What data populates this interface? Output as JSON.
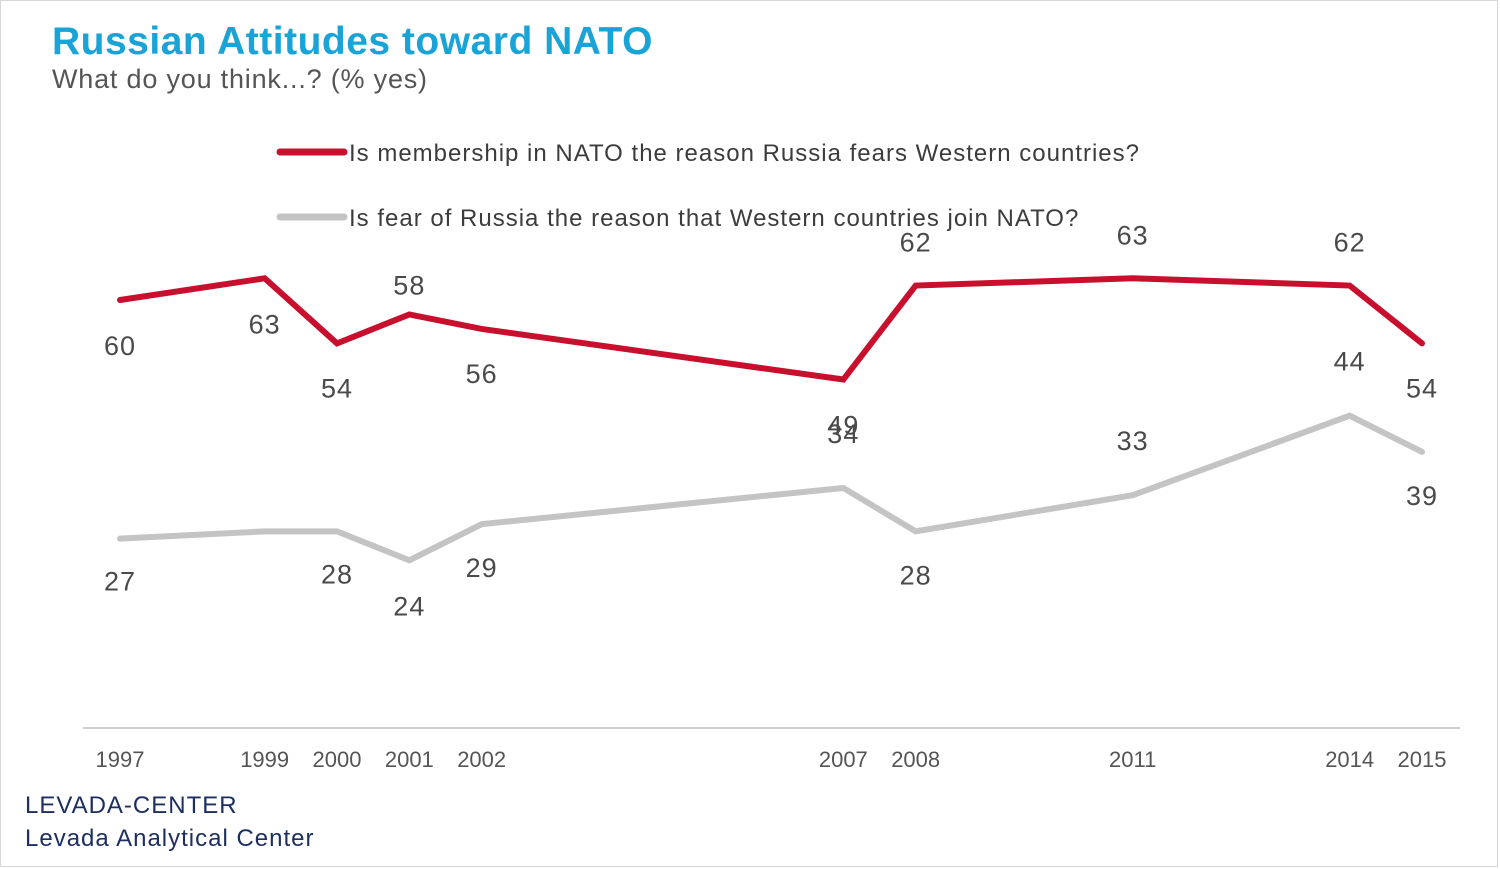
{
  "chart_data": {
    "type": "line",
    "title": "Russian Attitudes toward NATO",
    "subtitle": "What do you think...? (% yes)",
    "x": [
      "1997",
      "1999",
      "2000",
      "2001",
      "2002",
      "2007",
      "2008",
      "2011",
      "2014",
      "2015"
    ],
    "series": [
      {
        "name": "Is membership in NATO the reason Russia fears Western countries?",
        "color": "#c8102e",
        "values": [
          60,
          63,
          54,
          58,
          56,
          49,
          62,
          63,
          62,
          54
        ],
        "labels": [
          "60",
          "63",
          "54",
          "58",
          "56",
          "49",
          "62",
          "63",
          "62",
          "54"
        ]
      },
      {
        "name": "Is fear of Russia the reason that Western countries join NATO?",
        "color": "#c4c4c4",
        "values": [
          27,
          28,
          28,
          24,
          29,
          34,
          28,
          33,
          44,
          39
        ],
        "labels": [
          "27",
          "",
          "28",
          "24",
          "29",
          "34",
          "28",
          "33",
          "44",
          "39"
        ]
      }
    ],
    "legend_placement": "top",
    "grid": false
  },
  "source": {
    "line1": "LEVADA-CENTER",
    "line2": "Levada Analytical Center"
  }
}
